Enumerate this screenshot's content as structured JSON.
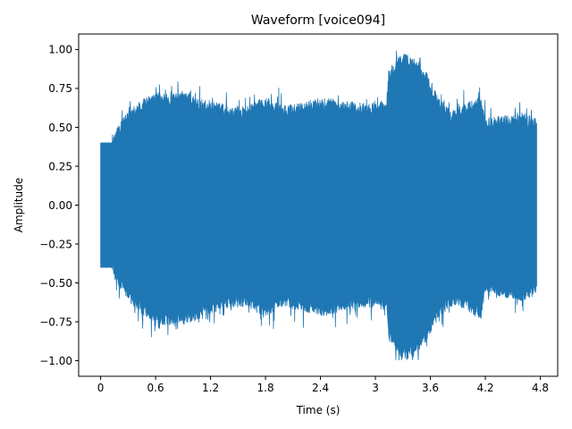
{
  "chart_data": {
    "type": "line",
    "title": "Waveform [voice094]",
    "xlabel": "Time (s)",
    "ylabel": "Amplitude",
    "xlim": [
      -0.24,
      4.99
    ],
    "ylim": [
      -1.1,
      1.1
    ],
    "grid": false,
    "x_ticks": [
      0,
      0.6,
      1.2,
      1.8,
      2.4,
      3.0,
      3.6,
      4.2,
      4.8
    ],
    "x_tick_labels": [
      "0",
      "0.6",
      "1.2",
      "1.8",
      "2.4",
      "3",
      "3.6",
      "4.2",
      "4.8"
    ],
    "y_ticks": [
      -1.0,
      -0.75,
      -0.5,
      -0.25,
      0.0,
      0.25,
      0.5,
      0.75,
      1.0
    ],
    "y_tick_labels": [
      "−1.00",
      "−0.75",
      "−0.50",
      "−0.25",
      "0.00",
      "0.25",
      "0.50",
      "0.75",
      "1.00"
    ],
    "series": [
      {
        "color": "#1f77b4",
        "duration_s": 4.76,
        "envelope": [
          {
            "t": 0.0,
            "upper": 0.4,
            "lower": -0.4
          },
          {
            "t": 0.12,
            "upper": 0.4,
            "lower": -0.4
          },
          {
            "t": 0.2,
            "upper": 0.46,
            "lower": -0.46
          },
          {
            "t": 0.3,
            "upper": 0.56,
            "lower": -0.56
          },
          {
            "t": 0.45,
            "upper": 0.62,
            "lower": -0.64
          },
          {
            "t": 0.6,
            "upper": 0.66,
            "lower": -0.7
          },
          {
            "t": 0.75,
            "upper": 0.66,
            "lower": -0.72
          },
          {
            "t": 0.9,
            "upper": 0.68,
            "lower": -0.72
          },
          {
            "t": 1.05,
            "upper": 0.62,
            "lower": -0.68
          },
          {
            "t": 1.2,
            "upper": 0.62,
            "lower": -0.64
          },
          {
            "t": 1.4,
            "upper": 0.58,
            "lower": -0.6
          },
          {
            "t": 1.6,
            "upper": 0.58,
            "lower": -0.6
          },
          {
            "t": 1.8,
            "upper": 0.64,
            "lower": -0.66
          },
          {
            "t": 2.0,
            "upper": 0.58,
            "lower": -0.6
          },
          {
            "t": 2.2,
            "upper": 0.6,
            "lower": -0.62
          },
          {
            "t": 2.4,
            "upper": 0.64,
            "lower": -0.66
          },
          {
            "t": 2.6,
            "upper": 0.62,
            "lower": -0.64
          },
          {
            "t": 2.8,
            "upper": 0.6,
            "lower": -0.6
          },
          {
            "t": 3.0,
            "upper": 0.6,
            "lower": -0.6
          },
          {
            "t": 3.12,
            "upper": 0.62,
            "lower": -0.62
          },
          {
            "t": 3.15,
            "upper": 0.82,
            "lower": -0.82
          },
          {
            "t": 3.3,
            "upper": 0.92,
            "lower": -0.94
          },
          {
            "t": 3.45,
            "upper": 0.9,
            "lower": -0.92
          },
          {
            "t": 3.55,
            "upper": 0.8,
            "lower": -0.82
          },
          {
            "t": 3.7,
            "upper": 0.62,
            "lower": -0.66
          },
          {
            "t": 3.85,
            "upper": 0.56,
            "lower": -0.58
          },
          {
            "t": 4.0,
            "upper": 0.6,
            "lower": -0.62
          },
          {
            "t": 4.15,
            "upper": 0.64,
            "lower": -0.68
          },
          {
            "t": 4.2,
            "upper": 0.5,
            "lower": -0.5
          },
          {
            "t": 4.4,
            "upper": 0.52,
            "lower": -0.54
          },
          {
            "t": 4.6,
            "upper": 0.54,
            "lower": -0.56
          },
          {
            "t": 4.76,
            "upper": 0.5,
            "lower": -0.52
          }
        ]
      }
    ]
  }
}
